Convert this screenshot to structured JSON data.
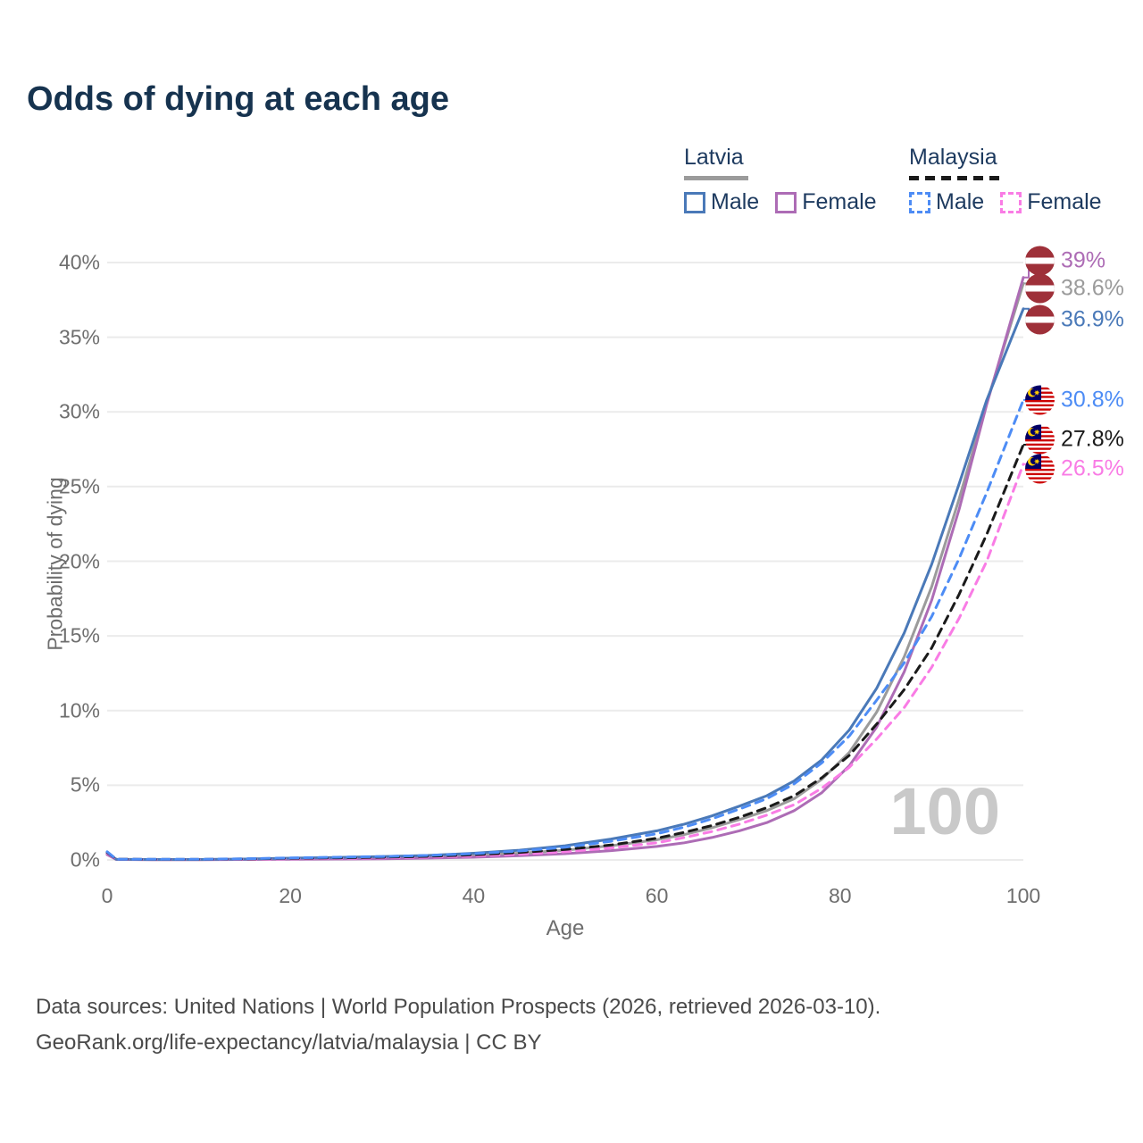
{
  "header": {
    "title": "Odds of dying at each age"
  },
  "legend": {
    "groups": [
      {
        "country": "Latvia",
        "line_style": "solid",
        "underline_color": "#9b9b9b",
        "items": [
          {
            "label": "Male",
            "color": "#4a79b8"
          },
          {
            "label": "Female",
            "color": "#ad6cb5"
          }
        ]
      },
      {
        "country": "Malaysia",
        "line_style": "dashed",
        "underline_color": "#1a1a1a",
        "items": [
          {
            "label": "Male",
            "color": "#4d8cf5"
          },
          {
            "label": "Female",
            "color": "#f97ce5"
          }
        ]
      }
    ]
  },
  "watermark": "100",
  "chart_data": {
    "type": "line",
    "title": "Odds of dying at each age",
    "xlabel": "Age",
    "ylabel": "Probability of dying",
    "xlim": [
      0,
      100
    ],
    "ylim": [
      0,
      40
    ],
    "x_ticks": [
      0,
      20,
      40,
      60,
      80,
      100
    ],
    "y_ticks": [
      0,
      5,
      10,
      15,
      20,
      25,
      30,
      35,
      40
    ],
    "y_tick_suffix": "%",
    "grid": "horizontal",
    "legend_position": "top-right",
    "ages": [
      0,
      1,
      5,
      10,
      15,
      20,
      25,
      30,
      35,
      40,
      45,
      50,
      55,
      60,
      63,
      66,
      69,
      72,
      75,
      78,
      81,
      84,
      87,
      90,
      93,
      96,
      100
    ],
    "series": [
      {
        "name": "Latvia Both sexes",
        "country": "Latvia",
        "sex": "Both",
        "color": "#9b9b9b",
        "dash": "solid",
        "values": [
          0.4,
          0.035,
          0.025,
          0.025,
          0.045,
          0.08,
          0.11,
          0.15,
          0.2,
          0.3,
          0.45,
          0.65,
          0.95,
          1.35,
          1.7,
          2.15,
          2.7,
          3.3,
          4.1,
          5.4,
          7.2,
          9.9,
          13.6,
          18.3,
          24.2,
          30.6,
          38.6
        ]
      },
      {
        "name": "Latvia Female",
        "country": "Latvia",
        "sex": "Female",
        "color": "#ad6cb5",
        "dash": "solid",
        "values": [
          0.35,
          0.03,
          0.02,
          0.02,
          0.03,
          0.04,
          0.06,
          0.08,
          0.12,
          0.18,
          0.28,
          0.42,
          0.62,
          0.9,
          1.15,
          1.5,
          1.95,
          2.5,
          3.3,
          4.5,
          6.3,
          8.9,
          12.6,
          17.4,
          23.5,
          30.5,
          39.0
        ]
      },
      {
        "name": "Latvia Male",
        "country": "Latvia",
        "sex": "Male",
        "color": "#4a79b8",
        "dash": "solid",
        "values": [
          0.45,
          0.04,
          0.03,
          0.03,
          0.06,
          0.12,
          0.17,
          0.22,
          0.3,
          0.45,
          0.65,
          0.95,
          1.4,
          1.95,
          2.4,
          2.95,
          3.6,
          4.3,
          5.3,
          6.7,
          8.7,
          11.5,
          15.2,
          19.8,
          25.2,
          30.8,
          36.9
        ]
      },
      {
        "name": "Malaysia Female",
        "country": "Malaysia",
        "sex": "Female",
        "color": "#f97ce5",
        "dash": "dashed",
        "values": [
          0.45,
          0.04,
          0.03,
          0.03,
          0.05,
          0.08,
          0.1,
          0.13,
          0.18,
          0.26,
          0.38,
          0.55,
          0.8,
          1.15,
          1.5,
          1.9,
          2.4,
          3.0,
          3.7,
          4.8,
          6.2,
          8.1,
          10.2,
          12.9,
          16.2,
          20.0,
          26.5
        ]
      },
      {
        "name": "Malaysia Both sexes",
        "country": "Malaysia",
        "sex": "Both",
        "color": "#1a1a1a",
        "dash": "dashed",
        "values": [
          0.5,
          0.045,
          0.035,
          0.035,
          0.065,
          0.11,
          0.14,
          0.18,
          0.24,
          0.34,
          0.5,
          0.7,
          1.0,
          1.45,
          1.85,
          2.3,
          2.85,
          3.5,
          4.3,
          5.5,
          7.0,
          9.1,
          11.4,
          14.2,
          17.8,
          21.8,
          27.8
        ]
      },
      {
        "name": "Malaysia Male",
        "country": "Malaysia",
        "sex": "Male",
        "color": "#4d8cf5",
        "dash": "dashed",
        "values": [
          0.55,
          0.05,
          0.04,
          0.04,
          0.08,
          0.14,
          0.18,
          0.23,
          0.3,
          0.42,
          0.6,
          0.85,
          1.25,
          1.75,
          2.2,
          2.75,
          3.4,
          4.1,
          5.1,
          6.5,
          8.3,
          10.7,
          13.2,
          16.3,
          20.2,
          24.6,
          30.8
        ]
      }
    ],
    "end_labels": [
      {
        "text": "39%",
        "color": "#ad6cb5",
        "flag": "latvia",
        "series": "Latvia Female"
      },
      {
        "text": "38.6%",
        "color": "#9b9b9b",
        "flag": "latvia",
        "series": "Latvia Both sexes"
      },
      {
        "text": "36.9%",
        "color": "#4a79b8",
        "flag": "latvia",
        "series": "Latvia Male"
      },
      {
        "text": "30.8%",
        "color": "#4d8cf5",
        "flag": "malaysia",
        "series": "Malaysia Male"
      },
      {
        "text": "27.8%",
        "color": "#1a1a1a",
        "flag": "malaysia",
        "series": "Malaysia Both sexes"
      },
      {
        "text": "26.5%",
        "color": "#f97ce5",
        "flag": "malaysia",
        "series": "Malaysia Female"
      }
    ],
    "age_counter": "100"
  },
  "footer": {
    "line1": "Data sources: United Nations | World Population Prospects (2026, retrieved 2026-03-10).",
    "line2": "GeoRank.org/life-expectancy/latvia/malaysia | CC BY"
  }
}
